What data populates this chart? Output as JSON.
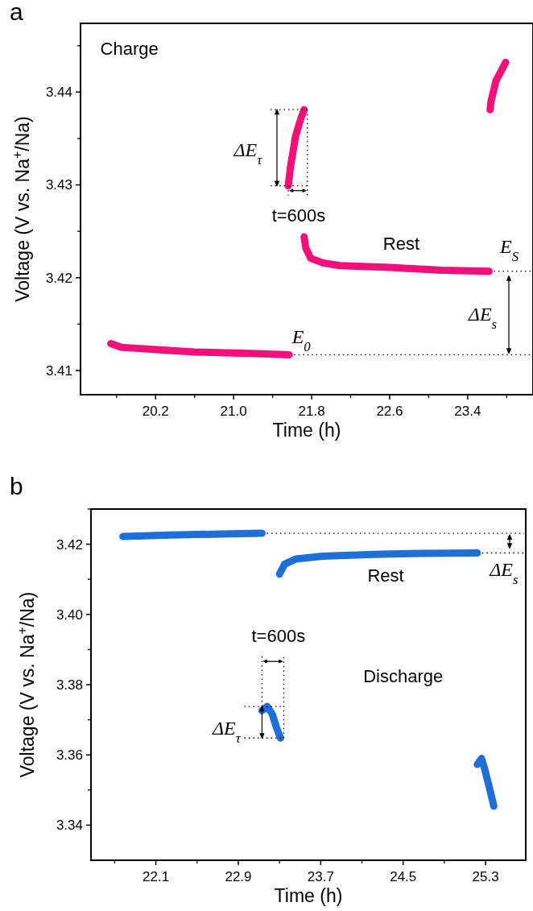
{
  "chart_data": [
    {
      "type": "line",
      "title": "a",
      "xlabel": "Time (h)",
      "ylabel": "Voltage (V vs. Na$^{+}$/Na)",
      "xlim": [
        19.43,
        24.07
      ],
      "ylim": [
        3.4074,
        3.4474
      ],
      "xticks": [
        20.2,
        {
          "value": 21.0,
          "label": "21.0"
        },
        21.8,
        22.6,
        23.4
      ],
      "yticks": [
        3.41,
        3.42,
        3.43,
        3.44
      ],
      "grid": false,
      "marker": "none",
      "line_style": "solid",
      "series": [
        {
          "color": "#f2117a",
          "x": [
            19.74,
            19.85,
            20.0,
            20.3,
            20.6,
            21.0,
            21.3,
            21.57
          ],
          "values": [
            3.4129,
            3.4125,
            3.4124,
            3.4122,
            3.412,
            3.4119,
            3.4118,
            3.4117
          ]
        },
        {
          "color": "#f2117a",
          "x": [
            21.56,
            21.584,
            21.636,
            21.688,
            21.723
          ],
          "values": [
            3.4299,
            3.432,
            3.4353,
            3.4371,
            3.4381
          ]
        },
        {
          "color": "#f2117a",
          "x": [
            21.723,
            21.74,
            21.79,
            21.915,
            22.09,
            22.61,
            23.13,
            23.62
          ],
          "values": [
            3.4244,
            3.4232,
            3.4221,
            3.4216,
            3.4213,
            3.4211,
            3.4208,
            3.4207
          ]
        },
        {
          "color": "#f2117a",
          "x": [
            23.63,
            23.64,
            23.69,
            23.79
          ],
          "values": [
            3.4381,
            3.439,
            3.4412,
            3.4432
          ]
        }
      ],
      "ref_lines": [
        {
          "axis": "y",
          "value": 3.4117,
          "line_style": "dotted",
          "color": "#000000"
        },
        {
          "axis": "y",
          "value": 3.4207,
          "line_style": "dotted",
          "color": "#000000"
        }
      ],
      "annotations": [
        "Charge",
        "Rest",
        {
          "text": "t=600s",
          "x": 21.56,
          "y": 3.4299
        },
        {
          "text": "ΔE$_{τ}$",
          "x": 21.584,
          "y": 3.432
        },
        {
          "text": "E$_{S}$",
          "x": 23.62,
          "y": 3.4207
        },
        {
          "text": "ΔE$_{s}$",
          "x": 23.62,
          "y": 3.4207
        },
        {
          "text": "E$_{0}$",
          "x": 21.57,
          "y": 3.4117
        }
      ]
    },
    {
      "type": "line",
      "title": "b",
      "xlabel": "Time (h)",
      "ylabel": "Voltage (V vs. Na$^{+}$/Na)",
      "xlim": [
        21.47,
        25.69
      ],
      "ylim": [
        3.33,
        3.43
      ],
      "xticks": [
        22.1,
        22.9,
        23.7,
        24.5,
        25.3
      ],
      "yticks": [
        3.34,
        3.36,
        3.38,
        {
          "value": 3.4,
          "label": "3.40"
        },
        3.42
      ],
      "grid": false,
      "marker": "none",
      "line_style": "solid",
      "series": [
        {
          "color": "#1f6fd8",
          "x": [
            21.78,
            22.24,
            22.73,
            23.13
          ],
          "values": [
            3.4222,
            3.4226,
            3.4229,
            3.4231
          ]
        },
        {
          "color": "#1f6fd8",
          "x": [
            23.13,
            23.18,
            23.23,
            23.27,
            23.31
          ],
          "values": [
            3.3726,
            3.3738,
            3.3716,
            3.3678,
            3.3648
          ]
        },
        {
          "color": "#1f6fd8",
          "x": [
            23.3,
            23.35,
            23.46,
            23.72,
            24.22,
            24.71,
            25.22
          ],
          "values": [
            3.4115,
            3.4143,
            3.4158,
            3.4166,
            3.4171,
            3.4174,
            3.4175
          ]
        },
        {
          "color": "#1f6fd8",
          "x": [
            25.22,
            25.26,
            25.29,
            25.34,
            25.38
          ],
          "values": [
            3.3573,
            3.359,
            3.3561,
            3.3503,
            3.3454
          ]
        }
      ],
      "ref_lines": [
        {
          "axis": "y",
          "value": 3.4231,
          "line_style": "dotted",
          "color": "#000000"
        },
        {
          "axis": "y",
          "value": 3.4175,
          "line_style": "dotted",
          "color": "#000000"
        }
      ],
      "annotations": [
        "Rest",
        "Discharge",
        {
          "text": "t=600s",
          "x": 23.18,
          "y": 3.3738
        },
        {
          "text": "ΔE$_{τ}$",
          "x": 23.13,
          "y": 3.3726
        },
        {
          "text": "ΔE$_{s}$",
          "x": 25.22,
          "y": 3.4175
        }
      ]
    }
  ]
}
